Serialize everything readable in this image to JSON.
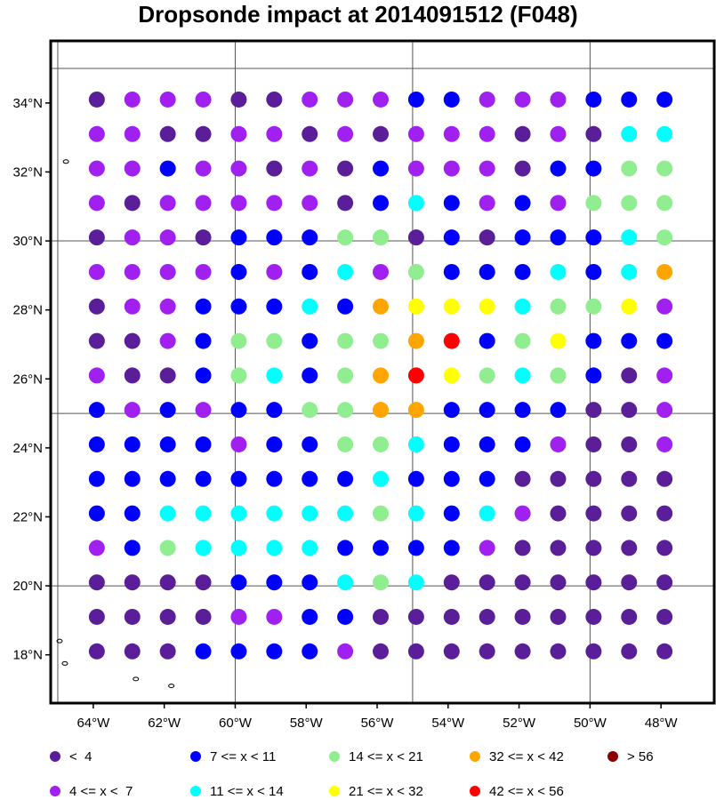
{
  "title": "Dropsonde impact at 2014091512 (F048)",
  "map": {
    "lon_range": [
      -65.2,
      -46.5
    ],
    "lat_range": [
      16.6,
      35.8
    ],
    "lon_ticks": [
      -64,
      -62,
      -60,
      -58,
      -56,
      -54,
      -52,
      -50,
      -48
    ],
    "lon_tick_labels": [
      "64°W",
      "62°W",
      "60°W",
      "58°W",
      "56°W",
      "54°W",
      "52°W",
      "50°W",
      "48°W"
    ],
    "lat_ticks": [
      18,
      20,
      22,
      24,
      26,
      28,
      30,
      32,
      34
    ],
    "lat_tick_labels": [
      "18°N",
      "20°N",
      "22°N",
      "24°N",
      "26°N",
      "28°N",
      "30°N",
      "32°N",
      "34°N"
    ],
    "gridlines_lon": [
      -65,
      -60,
      -55,
      -50
    ],
    "gridlines_lat": [
      20,
      25,
      30,
      35
    ],
    "point_lons": [
      -63.9,
      -62.9,
      -61.9,
      -60.9,
      -59.9,
      -58.9,
      -57.9,
      -56.9,
      -55.9,
      -54.9,
      -53.9,
      -52.9,
      -51.9,
      -50.9,
      -49.9,
      -48.9,
      -47.9
    ],
    "point_lats": [
      34.1,
      33.1,
      32.1,
      31.1,
      30.1,
      29.1,
      28.1,
      27.1,
      26.1,
      25.1,
      24.1,
      23.1,
      22.1,
      21.1,
      20.1,
      19.1,
      18.1
    ],
    "category_grid": [
      "01110011122111222",
      "11001101011101033",
      "11211010211102244",
      "10111110232121444",
      "01102224402022234",
      "11112123142223236",
      "01122232655534451",
      "00124424467245222",
      "10024324675434201",
      "21212244662222001",
      "22221224432221001",
      "22222222322200000",
      "22333333432310000",
      "12433332222100000",
      "00002223430000000",
      "00001122000000000",
      "00022221000000000"
    ],
    "coastline_islands": [
      {
        "lon": -64.77,
        "lat": 32.3
      },
      {
        "lon": -64.95,
        "lat": 18.4
      },
      {
        "lon": -64.8,
        "lat": 17.75
      },
      {
        "lon": -62.8,
        "lat": 17.3
      },
      {
        "lon": -61.8,
        "lat": 17.1
      }
    ]
  },
  "colors": [
    "#5a1e99",
    "#a020f0",
    "#0000ff",
    "#00ffff",
    "#90ee90",
    "#ffff00",
    "#ffa500",
    "#ff0000",
    "#8b0000"
  ],
  "legend": {
    "items": [
      {
        "label": "<  4",
        "color": "#5a1e99"
      },
      {
        "label": "4 <= x <  7",
        "color": "#a020f0"
      },
      {
        "label": "7 <= x < 11",
        "color": "#0000ff"
      },
      {
        "label": "11 <= x < 14",
        "color": "#00ffff"
      },
      {
        "label": "14 <= x < 21",
        "color": "#90ee90"
      },
      {
        "label": "21 <= x < 32",
        "color": "#ffff00"
      },
      {
        "label": "32 <= x < 42",
        "color": "#ffa500"
      },
      {
        "label": "42 <= x < 56",
        "color": "#ff0000"
      },
      {
        "label": "> 56",
        "color": "#8b0000"
      }
    ]
  }
}
